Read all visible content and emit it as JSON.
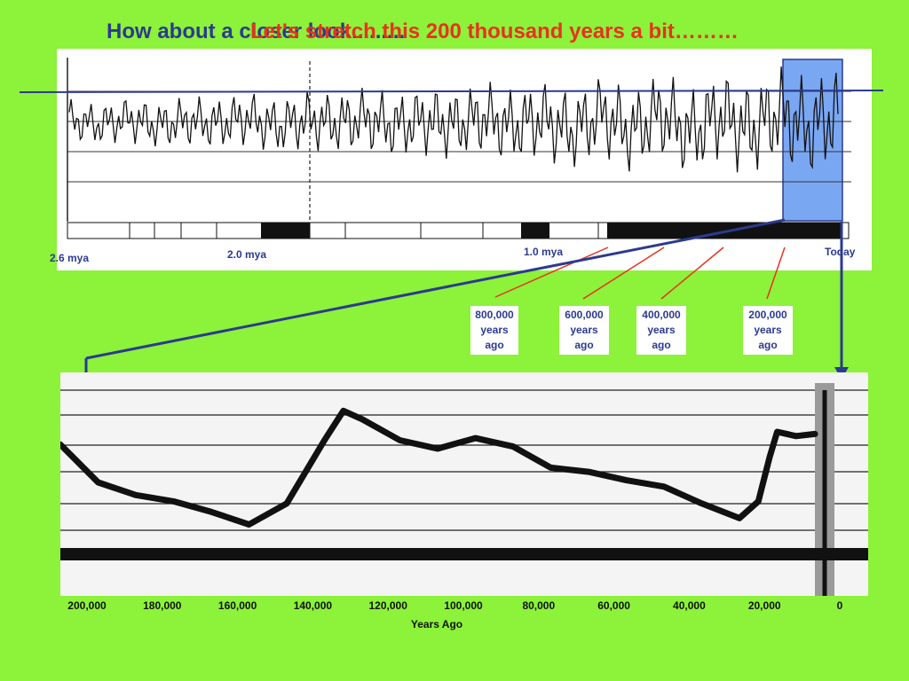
{
  "title_overlay": {
    "line_a": "How about a closer look.........",
    "line_b": "Let's stretch this 200 thousand years a bit………"
  },
  "top_timeline": {
    "labels": {
      "mya_2_6": "2.6 mya",
      "mya_2_0": "2.0 mya",
      "mya_1_0": "1.0 mya",
      "today": "Today"
    },
    "highlight_color": "#7aa7f2"
  },
  "callouts": [
    {
      "text": "800,000\nyears\nago"
    },
    {
      "text": "600,000\nyears\nago"
    },
    {
      "text": "400,000\nyears\nago"
    },
    {
      "text": "200,000\nyears\nago"
    }
  ],
  "chart_data": [
    {
      "type": "line",
      "x": [
        2.6,
        2.5,
        2.4,
        2.3,
        2.2,
        2.1,
        2.0,
        1.9,
        1.8,
        1.7,
        1.6,
        1.5,
        1.4,
        1.3,
        1.2,
        1.1,
        1.0,
        0.9,
        0.8,
        0.7,
        0.6,
        0.5,
        0.4,
        0.3,
        0.2,
        0.1,
        0.0
      ],
      "series": [
        {
          "values": [
            0.2,
            -0.4,
            0.3,
            -0.5,
            0.1,
            -0.3,
            0.4,
            -0.6,
            0.2,
            -0.2,
            0.3,
            -0.5,
            0.1,
            -0.4,
            0.5,
            -0.6,
            0.3,
            -1.2,
            0.9,
            -1.3,
            1.0,
            -1.4,
            0.8,
            -1.1,
            1.1,
            -0.9,
            0.9
          ]
        }
      ],
      "xlim": [
        2.6,
        0
      ],
      "highlight": [
        0.2,
        0
      ]
    },
    {
      "type": "line",
      "x": [
        200000,
        190000,
        180000,
        170000,
        160000,
        150000,
        140000,
        130000,
        125000,
        120000,
        110000,
        100000,
        90000,
        80000,
        70000,
        60000,
        50000,
        40000,
        30000,
        20000,
        15000,
        12000,
        10000,
        5000,
        0
      ],
      "series": [
        {
          "values": [
            5.0,
            3.2,
            2.6,
            2.3,
            1.8,
            1.2,
            2.2,
            5.2,
            6.6,
            6.2,
            5.2,
            4.8,
            5.3,
            4.9,
            3.9,
            3.7,
            3.3,
            3.0,
            2.2,
            1.5,
            2.3,
            4.4,
            5.6,
            5.4,
            5.5
          ]
        }
      ],
      "xticks": [
        "200,000",
        "180,000",
        "160,000",
        "140,000",
        "120,000",
        "100,000",
        "80,000",
        "60,000",
        "40,000",
        "20,000",
        "0"
      ],
      "xlabel": "Years Ago",
      "xlim": [
        200000,
        0
      ],
      "ylim": [
        0,
        8
      ]
    }
  ]
}
